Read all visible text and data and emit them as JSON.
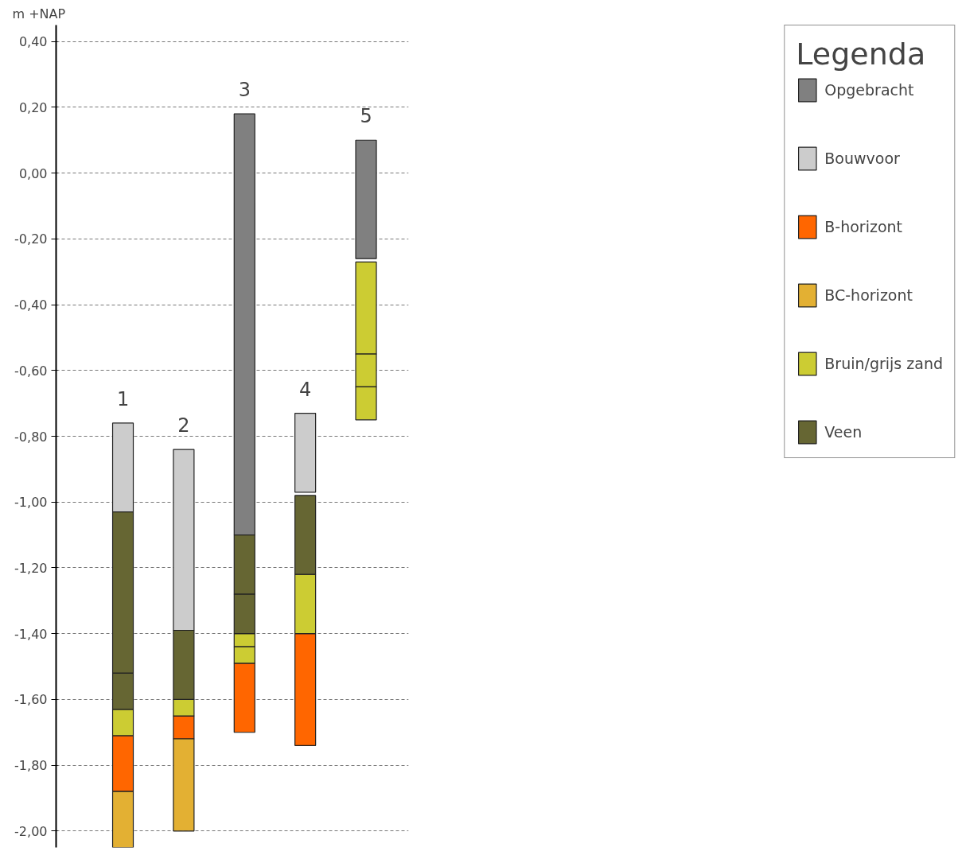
{
  "chart_data": {
    "type": "bar",
    "ylabel": "m +NAP",
    "legend_title": "Legenda",
    "legend": "right",
    "grid": "y",
    "line_style": "dashed",
    "categories": [
      "1",
      "2",
      "3",
      "4",
      "5"
    ],
    "ylim": [
      -2.05,
      0.45
    ],
    "yticks": [
      {
        "value": 0.4,
        "label": "0,40"
      },
      {
        "value": 0.2,
        "label": "0,20"
      },
      {
        "value": 0,
        "label": "0,00"
      },
      {
        "value": -0.2,
        "label": "-0,20"
      },
      {
        "value": -0.4,
        "label": "-0,40"
      },
      {
        "value": -0.6,
        "label": "-0,60"
      },
      {
        "value": -0.8,
        "label": "-0,80"
      },
      {
        "value": -1.0,
        "label": "-1,00"
      },
      {
        "value": -1.2,
        "label": "-1,20"
      },
      {
        "value": -1.4,
        "label": "-1,40"
      },
      {
        "value": -1.6,
        "label": "-1,60"
      },
      {
        "value": -1.8,
        "label": "-1,80"
      },
      {
        "value": -2.0,
        "label": "-2,00"
      }
    ],
    "series": [
      {
        "name": "Opgebracht",
        "color": "#808080",
        "base": [
          null,
          null,
          -1.1,
          null,
          -0.26
        ],
        "values": [
          null,
          null,
          1.28,
          null,
          0.36
        ]
      },
      {
        "name": "Bouwvoor",
        "color": "#cccccc",
        "base": [
          -1.03,
          -1.39,
          null,
          -0.97,
          null
        ],
        "values": [
          0.27,
          0.55,
          null,
          0.24,
          null
        ]
      },
      {
        "name": "B-horizont",
        "color": "#ff6600",
        "base": [
          -1.88,
          -1.72,
          -1.7,
          -1.74,
          null
        ],
        "values": [
          0.17,
          0.07,
          0.21,
          0.34,
          null
        ]
      },
      {
        "name": "BC-horizont",
        "color": "#e3b033",
        "base": [
          -2.05,
          -2.0,
          null,
          null,
          null
        ],
        "values": [
          0.17,
          0.28,
          null,
          null,
          null
        ]
      },
      {
        "name": "Bruin/grijs zand",
        "color": "#cccc33",
        "base": [
          -1.71,
          -1.65,
          -1.44,
          -1.4,
          -0.55
        ],
        "values": [
          0.08,
          0.05,
          0.04,
          0.18,
          0.28
        ]
      },
      {
        "name": "Veen",
        "color": "#666633",
        "base": [
          -1.52,
          -1.6,
          -1.28,
          -1.22,
          null
        ],
        "values": [
          0.49,
          0.21,
          0.18,
          0.24,
          null
        ]
      },
      {
        "color": "#666633",
        "base": [
          -1.63,
          null,
          -1.4,
          null,
          null
        ],
        "values": [
          0.11,
          null,
          0.12,
          null,
          null
        ]
      },
      {
        "color": "#cccc33",
        "base": [
          null,
          null,
          -1.49,
          null,
          -0.65
        ],
        "values": [
          null,
          null,
          0.05,
          null,
          0.1
        ]
      },
      {
        "color": "#cccc33",
        "base": [
          null,
          null,
          null,
          null,
          -0.75
        ],
        "values": [
          null,
          null,
          null,
          null,
          0.1
        ]
      }
    ]
  }
}
